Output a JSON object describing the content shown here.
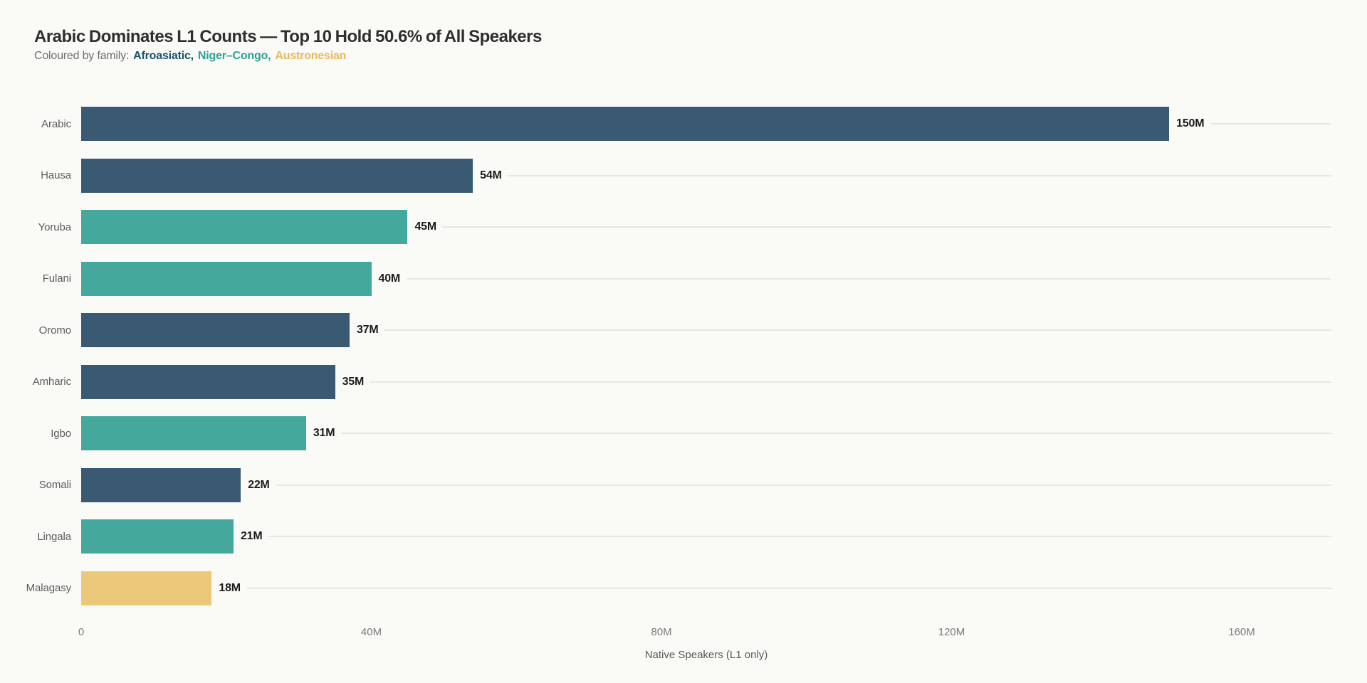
{
  "page": {
    "background_color": "#fafaf7"
  },
  "header": {
    "title": "Arabic Dominates L1 Counts — Top 10 Hold 50.6% of All Speakers",
    "subtitle_prefix": "Coloured by family:",
    "legend_words": [
      {
        "text": "Afroasiatic,",
        "color": "#19546e"
      },
      {
        "text": "Niger–Congo,",
        "color": "#2da296"
      },
      {
        "text": "Austronesian",
        "color": "#e8ba5e"
      }
    ]
  },
  "chart_data": {
    "type": "bar",
    "orientation": "horizontal",
    "title": "Arabic Dominates L1 Counts — Top 10 Hold 50.6% of All Speakers",
    "subtitle": "Coloured by family: Afroasiatic, Niger–Congo, Austronesian",
    "xlabel": "Native Speakers (L1 only)",
    "ylabel": "",
    "xlim_millions": [
      0,
      160
    ],
    "grid": "row-leader-lines-only",
    "legend_position": "subtitle",
    "x_ticks": [
      {
        "value_m": 0,
        "label": "0"
      },
      {
        "value_m": 40,
        "label": "40M"
      },
      {
        "value_m": 80,
        "label": "80M"
      },
      {
        "value_m": 120,
        "label": "120M"
      },
      {
        "value_m": 160,
        "label": "160M"
      }
    ],
    "families": {
      "Afroasiatic": {
        "bar_color": "#3a5a73"
      },
      "Niger–Congo": {
        "bar_color": "#45a89c"
      },
      "Austronesian": {
        "bar_color": "#ecc87a"
      }
    },
    "bars": [
      {
        "category": "Arabic",
        "value_m": 150,
        "value_label": "150M",
        "family": "Afroasiatic"
      },
      {
        "category": "Hausa",
        "value_m": 54,
        "value_label": "54M",
        "family": "Afroasiatic"
      },
      {
        "category": "Yoruba",
        "value_m": 45,
        "value_label": "45M",
        "family": "Niger–Congo"
      },
      {
        "category": "Fulani",
        "value_m": 40,
        "value_label": "40M",
        "family": "Niger–Congo"
      },
      {
        "category": "Oromo",
        "value_m": 37,
        "value_label": "37M",
        "family": "Afroasiatic"
      },
      {
        "category": "Amharic",
        "value_m": 35,
        "value_label": "35M",
        "family": "Afroasiatic"
      },
      {
        "category": "Igbo",
        "value_m": 31,
        "value_label": "31M",
        "family": "Niger–Congo"
      },
      {
        "category": "Somali",
        "value_m": 22,
        "value_label": "22M",
        "family": "Afroasiatic"
      },
      {
        "category": "Lingala",
        "value_m": 21,
        "value_label": "21M",
        "family": "Niger–Congo"
      },
      {
        "category": "Malagasy",
        "value_m": 18,
        "value_label": "18M",
        "family": "Austronesian"
      }
    ]
  }
}
